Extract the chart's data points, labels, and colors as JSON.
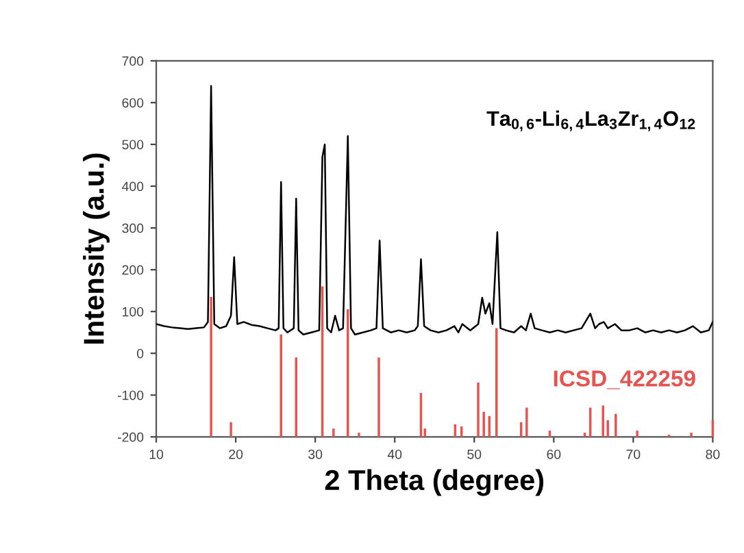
{
  "chart_data": {
    "type": "line",
    "xlabel": "2 Theta (degree)",
    "ylabel": "Intensity (a.u.)",
    "xlim": [
      10,
      80
    ],
    "xticks": [
      10,
      20,
      30,
      40,
      50,
      60,
      70,
      80
    ],
    "ylim": [
      -200,
      700
    ],
    "yticks": [
      -200,
      -100,
      0,
      100,
      200,
      300,
      400,
      500,
      600,
      700
    ],
    "grid": false,
    "legend": false,
    "marker": "none",
    "line_style": "solid",
    "series": [
      {
        "name": "Ta$_{0,6}$-Li$_{6,4}$La$_{3}$Zr$_{1,4}$O$_{12}$",
        "color": "#000000",
        "x": [
          10,
          11,
          12,
          13,
          14,
          15,
          16,
          16.5,
          16.9,
          17.3,
          18,
          18.8,
          19.4,
          19.8,
          20.2,
          21,
          22,
          23,
          24,
          25,
          25.4,
          25.7,
          26.0,
          26.5,
          27.3,
          27.6,
          27.9,
          28.5,
          29.5,
          30.5,
          30.9,
          31.2,
          31.5,
          32,
          32.5,
          33,
          33.5,
          34.1,
          34.5,
          35,
          36,
          37,
          37.7,
          38.1,
          38.5,
          39.5,
          40.5,
          41.5,
          42.5,
          42.9,
          43.3,
          43.7,
          44.5,
          45.5,
          46.5,
          47.5,
          48,
          48.5,
          49.5,
          50.5,
          51.0,
          51.4,
          51.9,
          52.3,
          52.9,
          53.3,
          54,
          55,
          55.9,
          56.5,
          57.1,
          57.6,
          58.5,
          59.5,
          60.5,
          61.5,
          62.5,
          63.5,
          64.6,
          65.2,
          65.7,
          66.3,
          66.8,
          67.7,
          68.5,
          69.5,
          70.5,
          71.5,
          72.5,
          73.5,
          74.5,
          75.5,
          76.5,
          77.5,
          78.5,
          79.5,
          80
        ],
        "values": [
          70,
          65,
          62,
          60,
          58,
          60,
          62,
          75,
          640,
          70,
          60,
          65,
          90,
          230,
          70,
          75,
          68,
          65,
          60,
          55,
          60,
          410,
          60,
          50,
          60,
          370,
          55,
          45,
          50,
          55,
          470,
          500,
          60,
          50,
          90,
          55,
          60,
          520,
          60,
          45,
          50,
          55,
          60,
          270,
          60,
          50,
          55,
          50,
          55,
          65,
          225,
          65,
          55,
          50,
          55,
          65,
          50,
          70,
          55,
          70,
          133,
          95,
          120,
          70,
          290,
          60,
          55,
          50,
          65,
          55,
          95,
          60,
          55,
          50,
          55,
          50,
          55,
          60,
          95,
          60,
          70,
          75,
          60,
          70,
          55,
          55,
          60,
          50,
          55,
          50,
          55,
          50,
          55,
          65,
          50,
          55,
          75
        ]
      },
      {
        "name": "ICSD_422259",
        "type": "bar",
        "color": "#e8534f",
        "x": [
          16.9,
          19.4,
          25.7,
          27.6,
          30.9,
          32.3,
          34.1,
          35.5,
          38.0,
          43.3,
          43.8,
          47.6,
          48.4,
          50.5,
          51.2,
          51.9,
          52.8,
          55.9,
          56.6,
          59.5,
          63.9,
          64.6,
          66.2,
          66.8,
          67.8,
          70.5,
          74.5,
          77.3,
          80
        ],
        "base": [
          -200,
          -200,
          -200,
          -200,
          -200,
          -200,
          -200,
          -200,
          -200,
          -200,
          -200,
          -200,
          -200,
          -200,
          -200,
          -200,
          -200,
          -200,
          -200,
          -200,
          -200,
          -200,
          -200,
          -200,
          -200,
          -200,
          -200,
          -200,
          -200
        ],
        "values": [
          335,
          35,
          245,
          190,
          360,
          20,
          305,
          10,
          190,
          105,
          20,
          30,
          25,
          130,
          60,
          50,
          260,
          35,
          70,
          15,
          10,
          70,
          75,
          40,
          55,
          15,
          5,
          10,
          40
        ]
      }
    ]
  }
}
